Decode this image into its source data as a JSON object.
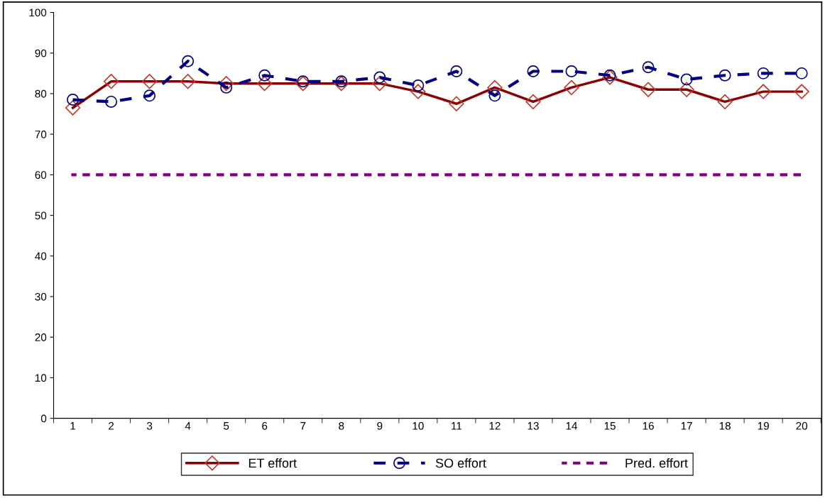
{
  "chart_data": {
    "type": "line",
    "categories": [
      "1",
      "2",
      "3",
      "4",
      "5",
      "6",
      "7",
      "8",
      "9",
      "10",
      "11",
      "12",
      "13",
      "14",
      "15",
      "16",
      "17",
      "18",
      "19",
      "20"
    ],
    "series": [
      {
        "name": "ET effort",
        "color": "#8b0000",
        "marker": "diamond",
        "line_style": "solid",
        "values": [
          76.5,
          83,
          83,
          83,
          82.5,
          82.5,
          82.5,
          82.5,
          82.5,
          80.5,
          77.5,
          81.5,
          78,
          81.5,
          84,
          81,
          81,
          78,
          80.5,
          80.5
        ]
      },
      {
        "name": "SO effort",
        "color": "#000080",
        "marker": "circle",
        "line_style": "dashed",
        "values": [
          78.5,
          78,
          79.5,
          88,
          81.5,
          84.5,
          83,
          83,
          84,
          82,
          85.5,
          79.5,
          85.5,
          85.5,
          84.5,
          86.5,
          83.5,
          84.5,
          85,
          85
        ]
      },
      {
        "name": "Pred. effort",
        "color": "#800080",
        "marker": "none",
        "line_style": "dashed",
        "values": [
          60,
          60,
          60,
          60,
          60,
          60,
          60,
          60,
          60,
          60,
          60,
          60,
          60,
          60,
          60,
          60,
          60,
          60,
          60,
          60
        ]
      }
    ],
    "ylim": [
      0,
      100
    ],
    "yticks": [
      0,
      10,
      20,
      30,
      40,
      50,
      60,
      70,
      80,
      90,
      100
    ],
    "grid": false,
    "legend": "bottom"
  }
}
